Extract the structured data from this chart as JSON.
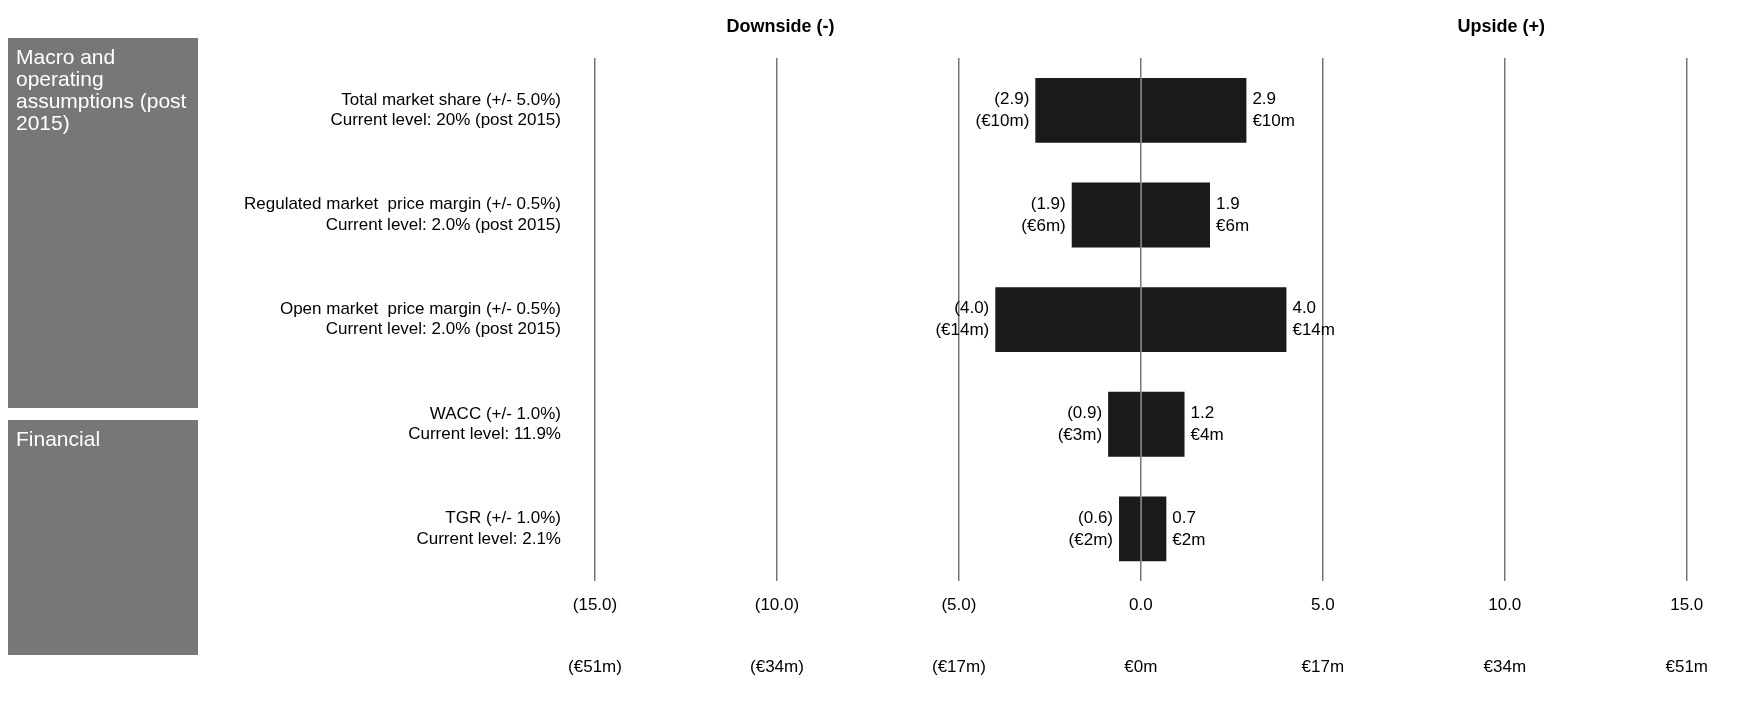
{
  "chart_data": {
    "type": "bar",
    "orientation": "horizontal",
    "stacked": true,
    "categories": [
      "Total market share (+/- 5.0%)\nCurrent level: 20% (post 2015)",
      "Regulated market  price margin (+/- 0.5%)\nCurrent level: 2.0% (post 2015)",
      "Open market  price margin (+/- 0.5%)\nCurrent level: 2.0% (post 2015)",
      "WACC (+/- 1.0%)\nCurrent level: 11.9%",
      "TGR (+/- 1.0%)\nCurrent level: 2.1%"
    ],
    "series": [
      {
        "color": "#1a1a1a",
        "values": [
          -2.9,
          -1.9,
          -4.0,
          -0.9,
          -0.6
        ],
        "value_labels": [
          "(2.9)\n(€10m)",
          "(1.9)\n(€6m)",
          "(4.0)\n(€14m)",
          "(0.9)\n(€3m)",
          "(0.6)\n(€2m)"
        ]
      },
      {
        "color": "#1a1a1a",
        "values": [
          2.9,
          1.9,
          4.0,
          1.2,
          0.7
        ],
        "value_labels": [
          "2.9\n€10m",
          "1.9\n€6m",
          "4.0\n€14m",
          "1.2\n€4m",
          "0.7\n€2m"
        ]
      }
    ],
    "xlim": [
      -15,
      15
    ],
    "xticks": [
      {
        "value": -15,
        "label": "(15.0)"
      },
      {
        "value": -10,
        "label": "(10.0)"
      },
      {
        "value": -5,
        "label": "(5.0)"
      },
      {
        "value": 0,
        "label": "0.0"
      },
      {
        "value": 5,
        "label": "5.0"
      },
      {
        "value": 10,
        "label": "10.0"
      },
      {
        "value": 15,
        "label": "15.0"
      }
    ],
    "x2lim": [
      -51,
      51
    ],
    "x2ticks": [
      {
        "value": -51,
        "label": "(€51m)"
      },
      {
        "value": -34,
        "label": "(€34m)"
      },
      {
        "value": -17,
        "label": "(€17m)"
      },
      {
        "value": 0,
        "label": "€0m"
      },
      {
        "value": 17,
        "label": "€17m"
      },
      {
        "value": 34,
        "label": "€34m"
      },
      {
        "value": 51,
        "label": "€51m"
      }
    ],
    "grid": "x",
    "annotations": [
      "Downside (-)",
      "Upside (+)",
      "Macro and operating assumptions (post 2015)",
      "Financial"
    ]
  }
}
